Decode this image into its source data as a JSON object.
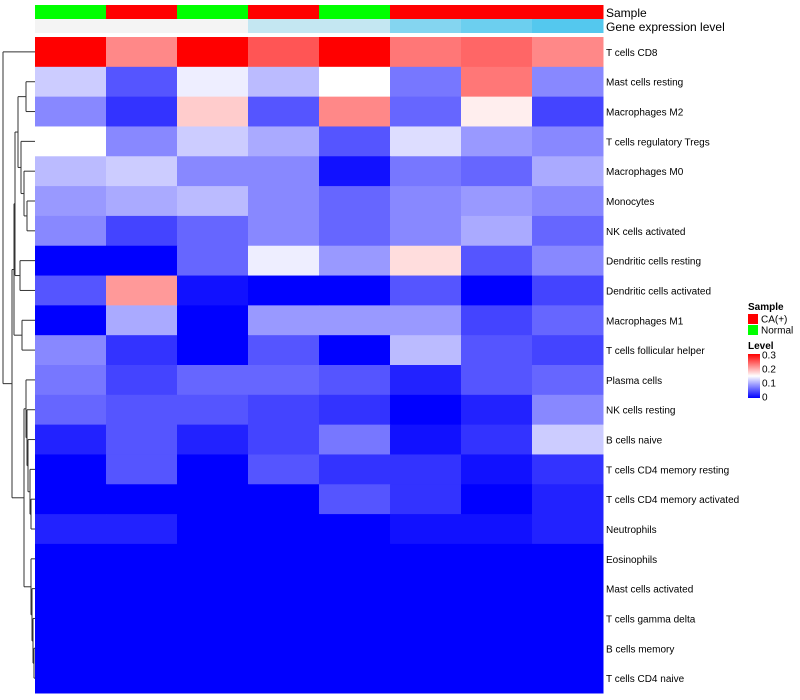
{
  "chart_data": {
    "type": "heatmap",
    "annotation_labels": [
      "Sample",
      "Gene expression level"
    ],
    "rows": [
      "T cells CD8",
      "Mast cells resting",
      "Macrophages M2",
      "T cells regulatory  Tregs",
      "Macrophages M0",
      "Monocytes",
      "NK cells activated",
      "Dendritic cells resting",
      "Dendritic cells activated",
      "Macrophages M1",
      "T cells follicular helper",
      "Plasma cells",
      "NK cells resting",
      "B cells naive",
      "T cells CD4 memory resting",
      "T cells CD4 memory activated",
      "Neutrophils",
      "Eosinophils",
      "Mast cells activated",
      "T cells gamma delta",
      "B cells memory",
      "T cells CD4 naive"
    ],
    "column_sample": [
      "Normal",
      "CA(+)",
      "Normal",
      "CA(+)",
      "Normal",
      "CA(+)",
      "CA(+)",
      "CA(+)"
    ],
    "column_expression_level": [
      0.0,
      0.0,
      0.0,
      0.3,
      0.3,
      0.7,
      0.85,
      1.0
    ],
    "values": [
      [
        0.3,
        0.22,
        0.3,
        0.25,
        0.3,
        0.23,
        0.24,
        0.22
      ],
      [
        0.12,
        0.05,
        0.14,
        0.11,
        0.15,
        0.07,
        0.23,
        0.08
      ],
      [
        0.08,
        0.03,
        0.18,
        0.05,
        0.22,
        0.06,
        0.16,
        0.04
      ],
      [
        0.15,
        0.08,
        0.12,
        0.1,
        0.05,
        0.13,
        0.09,
        0.08
      ],
      [
        0.11,
        0.12,
        0.08,
        0.08,
        0.01,
        0.07,
        0.06,
        0.1
      ],
      [
        0.09,
        0.1,
        0.11,
        0.08,
        0.06,
        0.08,
        0.09,
        0.08
      ],
      [
        0.08,
        0.04,
        0.06,
        0.08,
        0.06,
        0.08,
        0.1,
        0.06
      ],
      [
        0.0,
        0.0,
        0.06,
        0.14,
        0.09,
        0.17,
        0.05,
        0.08
      ],
      [
        0.05,
        0.21,
        0.01,
        0.0,
        0.0,
        0.05,
        0.0,
        0.04
      ],
      [
        0.0,
        0.1,
        0.0,
        0.09,
        0.09,
        0.09,
        0.04,
        0.06
      ],
      [
        0.08,
        0.03,
        0.0,
        0.05,
        0.0,
        0.11,
        0.05,
        0.04
      ],
      [
        0.07,
        0.04,
        0.06,
        0.06,
        0.05,
        0.02,
        0.05,
        0.06
      ],
      [
        0.06,
        0.05,
        0.05,
        0.04,
        0.03,
        0.0,
        0.02,
        0.08
      ],
      [
        0.02,
        0.05,
        0.02,
        0.04,
        0.07,
        0.01,
        0.03,
        0.12
      ],
      [
        0.0,
        0.05,
        0.0,
        0.05,
        0.03,
        0.03,
        0.01,
        0.03
      ],
      [
        0.0,
        0.0,
        0.0,
        0.0,
        0.05,
        0.03,
        0.0,
        0.02
      ],
      [
        0.02,
        0.02,
        0.0,
        0.0,
        0.0,
        0.01,
        0.01,
        0.02
      ],
      [
        0.0,
        0.0,
        0.0,
        0.0,
        0.0,
        0.0,
        0.0,
        0.0
      ],
      [
        0.0,
        0.0,
        0.0,
        0.0,
        0.0,
        0.0,
        0.0,
        0.0
      ],
      [
        0.0,
        0.0,
        0.0,
        0.0,
        0.0,
        0.0,
        0.0,
        0.0
      ],
      [
        0.0,
        0.0,
        0.0,
        0.0,
        0.0,
        0.0,
        0.0,
        0.0
      ],
      [
        0.0,
        0.0,
        0.0,
        0.0,
        0.0,
        0.0,
        0.0,
        0.0
      ]
    ],
    "color_scale": {
      "low": "#0000ff",
      "mid": "#ffffff",
      "high": "#ff0000",
      "min": 0,
      "mid_value": 0.15,
      "max": 0.3
    },
    "sample_colors": {
      "CA(+)": "#ff0000",
      "Normal": "#00ff00"
    },
    "expression_level_colors": {
      "low": "#f4f4f4",
      "high": "#54c8ee"
    },
    "legend": {
      "sample_title": "Sample",
      "sample_entries": [
        {
          "label": "CA(+)",
          "color": "#ff0000"
        },
        {
          "label": "Normal",
          "color": "#00ff00"
        }
      ],
      "level_title": "Level",
      "level_ticks": [
        "0.3",
        "0.2",
        "0.1",
        "0"
      ],
      "placement": "right"
    },
    "dendrogram": "rows"
  }
}
